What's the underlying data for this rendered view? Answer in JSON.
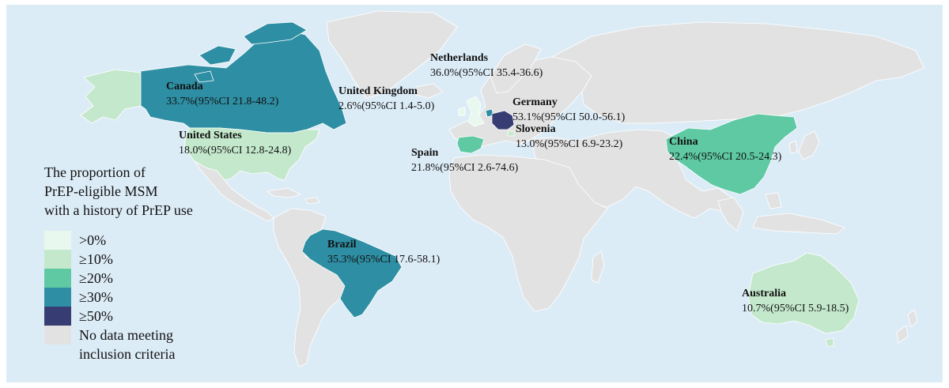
{
  "colors": {
    "ocean": "#dcecf7",
    "no_data": "#e2e2e2",
    "gt0": "#e8f8ee",
    "ge10": "#c4e8cc",
    "ge20": "#5ec9a3",
    "ge30": "#2e8ea3",
    "ge50": "#373d72"
  },
  "legend": {
    "title_lines": [
      "The proportion of",
      "PrEP-eligible MSM",
      "with a history of PrEP use"
    ],
    "items": [
      {
        "label": ">0%",
        "color": "#e8f8ee"
      },
      {
        "label": "≥10%",
        "color": "#c4e8cc"
      },
      {
        "label": "≥20%",
        "color": "#5ec9a3"
      },
      {
        "label": "≥30%",
        "color": "#2e8ea3"
      },
      {
        "label": "≥50%",
        "color": "#373d72"
      },
      {
        "label_lines": [
          "No data meeting",
          "inclusion criteria"
        ],
        "color": "#e2e2e2"
      }
    ]
  },
  "countries": [
    {
      "id": "netherlands",
      "name": "Netherlands",
      "value": "36.0%(95%CI 35.4-36.6)",
      "category": "ge30"
    },
    {
      "id": "canada",
      "name": "Canada",
      "value": "33.7%(95%CI 21.8-48.2)",
      "category": "ge30"
    },
    {
      "id": "united-kingdom",
      "name": "United Kingdom",
      "value": "2.6%(95%CI 1.4-5.0)",
      "category": "gt0"
    },
    {
      "id": "germany",
      "name": "Germany",
      "value": "53.1%(95%CI 50.0-56.1)",
      "category": "ge50"
    },
    {
      "id": "slovenia",
      "name": "Slovenia",
      "value": "13.0%(95%CI 6.9-23.2)",
      "category": "ge10"
    },
    {
      "id": "united-states",
      "name": "United States",
      "value": "18.0%(95%CI 12.8-24.8)",
      "category": "ge10"
    },
    {
      "id": "spain",
      "name": "Spain",
      "value": "21.8%(95%CI 2.6-74.6)",
      "category": "ge20"
    },
    {
      "id": "china",
      "name": "China",
      "value": "22.4%(95%CI 20.5-24.3)",
      "category": "ge20"
    },
    {
      "id": "brazil",
      "name": "Brazil",
      "value": "35.3%(95%CI 17.6-58.1)",
      "category": "ge30"
    },
    {
      "id": "australia",
      "name": "Australia",
      "value": "10.7%(95%CI 5.9-18.5)",
      "category": "ge10"
    }
  ]
}
